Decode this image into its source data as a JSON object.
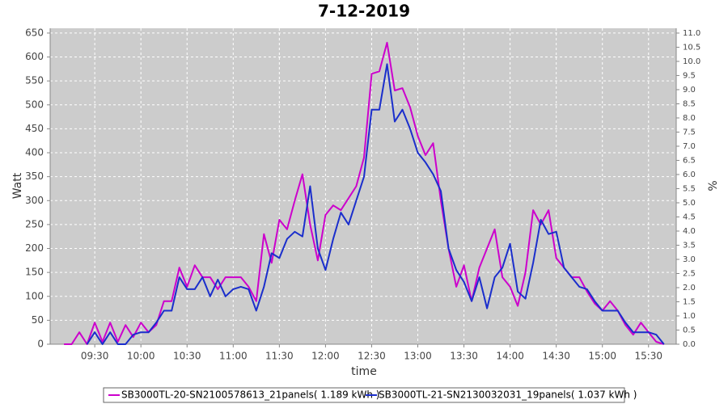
{
  "chart_data": {
    "type": "line",
    "title": "7-12-2019",
    "xlabel": "time",
    "ylabel": "Watt",
    "y2label": "%",
    "x": [
      "09:10",
      "09:15",
      "09:20",
      "09:25",
      "09:30",
      "09:35",
      "09:40",
      "09:45",
      "09:50",
      "09:55",
      "10:00",
      "10:05",
      "10:10",
      "10:15",
      "10:20",
      "10:25",
      "10:30",
      "10:35",
      "10:40",
      "10:45",
      "10:50",
      "10:55",
      "11:00",
      "11:05",
      "11:10",
      "11:15",
      "11:20",
      "11:25",
      "11:30",
      "11:35",
      "11:40",
      "11:45",
      "11:50",
      "11:55",
      "12:00",
      "12:05",
      "12:10",
      "12:15",
      "12:20",
      "12:25",
      "12:30",
      "12:35",
      "12:40",
      "12:45",
      "12:50",
      "12:55",
      "13:00",
      "13:05",
      "13:10",
      "13:15",
      "13:20",
      "13:25",
      "13:30",
      "13:35",
      "13:40",
      "13:45",
      "13:50",
      "13:55",
      "14:00",
      "14:05",
      "14:10",
      "14:15",
      "14:20",
      "14:25",
      "14:30",
      "14:35",
      "14:40",
      "14:45",
      "14:50",
      "14:55",
      "15:00",
      "15:05",
      "15:10",
      "15:15",
      "15:20",
      "15:25",
      "15:30",
      "15:35",
      "15:40"
    ],
    "series": [
      {
        "name": "SB3000TL-20-SN2100578613_21panels( 1.189 kWh )",
        "color": "#cc00cc",
        "values": [
          0,
          0,
          25,
          0,
          45,
          5,
          45,
          5,
          40,
          15,
          45,
          25,
          40,
          90,
          90,
          160,
          120,
          165,
          140,
          140,
          115,
          140,
          140,
          140,
          120,
          90,
          230,
          170,
          260,
          240,
          300,
          355,
          250,
          175,
          270,
          290,
          280,
          305,
          330,
          390,
          565,
          570,
          630,
          530,
          535,
          495,
          435,
          395,
          420,
          300,
          200,
          120,
          165,
          90,
          160,
          200,
          240,
          140,
          120,
          80,
          150,
          280,
          250,
          280,
          180,
          160,
          140,
          140,
          110,
          85,
          70,
          90,
          70,
          40,
          20,
          45,
          25,
          5,
          0
        ]
      },
      {
        "name": "SB3000TL-21-SN2130032031_19panels( 1.037 kWh )",
        "color": "#1a2ecc",
        "values": [
          null,
          null,
          null,
          0,
          25,
          0,
          25,
          0,
          0,
          20,
          25,
          25,
          45,
          70,
          70,
          140,
          115,
          115,
          140,
          100,
          135,
          100,
          115,
          120,
          115,
          70,
          120,
          190,
          180,
          220,
          235,
          225,
          330,
          200,
          155,
          220,
          275,
          250,
          300,
          350,
          490,
          490,
          585,
          465,
          490,
          450,
          400,
          380,
          355,
          320,
          200,
          155,
          130,
          90,
          140,
          75,
          140,
          160,
          210,
          110,
          95,
          170,
          260,
          230,
          235,
          160,
          140,
          120,
          115,
          90,
          70,
          70,
          70,
          45,
          25,
          25,
          25,
          20,
          0
        ]
      }
    ],
    "xlim": [
      "09:01",
      "15:48"
    ],
    "xticks": [
      "09:30",
      "10:00",
      "10:30",
      "11:00",
      "11:30",
      "12:00",
      "12:30",
      "13:00",
      "13:30",
      "14:00",
      "14:30",
      "15:00",
      "15:30"
    ],
    "ylim": [
      0,
      660
    ],
    "yticks": [
      0,
      50,
      100,
      150,
      200,
      250,
      300,
      350,
      400,
      450,
      500,
      550,
      600,
      650
    ],
    "y2lim": [
      0,
      11.17
    ],
    "y2ticks": [
      {
        "value": 0,
        "label": "0.0"
      },
      {
        "value": 0.5,
        "label": "0.5"
      },
      {
        "value": 1,
        "label": "1.0"
      },
      {
        "value": 1.5,
        "label": "1.5"
      },
      {
        "value": 2,
        "label": "2.0"
      },
      {
        "value": 2.5,
        "label": "2.5"
      },
      {
        "value": 3,
        "label": "3.0"
      },
      {
        "value": 3.5,
        "label": "3.5"
      },
      {
        "value": 4,
        "label": "4.0"
      },
      {
        "value": 4.5,
        "label": "4.5"
      },
      {
        "value": 5,
        "label": "5.0"
      },
      {
        "value": 5.5,
        "label": "5.5"
      },
      {
        "value": 6,
        "label": "6.0"
      },
      {
        "value": 6.5,
        "label": "6.5"
      },
      {
        "value": 7,
        "label": "7.0"
      },
      {
        "value": 7.5,
        "label": "7.5"
      },
      {
        "value": 8,
        "label": "8.0"
      },
      {
        "value": 8.5,
        "label": "8.5"
      },
      {
        "value": 9,
        "label": "9.0"
      },
      {
        "value": 9.5,
        "label": "9.5"
      },
      {
        "value": 10,
        "label": "10.0"
      },
      {
        "value": 10.5,
        "label": "10.5"
      },
      {
        "value": 11,
        "label": "11.0"
      }
    ],
    "grid": true,
    "legend": "bottom"
  }
}
